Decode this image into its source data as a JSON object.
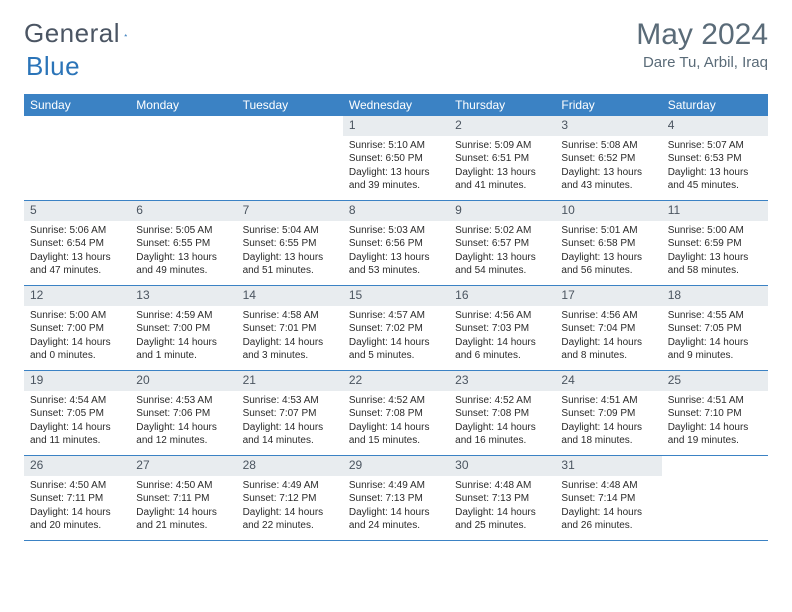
{
  "brand": {
    "part1": "General",
    "part2": "Blue"
  },
  "title": "May 2024",
  "location": "Dare Tu, Arbil, Iraq",
  "colors": {
    "header_bg": "#3b82c4",
    "header_text": "#ffffff",
    "daynum_bg": "#e8ecef",
    "daynum_text": "#4b5560",
    "rule": "#3b82c4",
    "title_text": "#5a6b78",
    "brand_gray": "#6b7280",
    "brand_blue": "#2b74b8"
  },
  "typography": {
    "title_fontsize": 30,
    "location_fontsize": 15,
    "dayhead_fontsize": 12,
    "daynum_fontsize": 12,
    "detail_fontsize": 10
  },
  "day_labels": [
    "Sunday",
    "Monday",
    "Tuesday",
    "Wednesday",
    "Thursday",
    "Friday",
    "Saturday"
  ],
  "weeks": [
    [
      {
        "n": "",
        "sr": "",
        "ss": "",
        "d1": "",
        "d2": ""
      },
      {
        "n": "",
        "sr": "",
        "ss": "",
        "d1": "",
        "d2": ""
      },
      {
        "n": "",
        "sr": "",
        "ss": "",
        "d1": "",
        "d2": ""
      },
      {
        "n": "1",
        "sr": "Sunrise: 5:10 AM",
        "ss": "Sunset: 6:50 PM",
        "d1": "Daylight: 13 hours",
        "d2": "and 39 minutes."
      },
      {
        "n": "2",
        "sr": "Sunrise: 5:09 AM",
        "ss": "Sunset: 6:51 PM",
        "d1": "Daylight: 13 hours",
        "d2": "and 41 minutes."
      },
      {
        "n": "3",
        "sr": "Sunrise: 5:08 AM",
        "ss": "Sunset: 6:52 PM",
        "d1": "Daylight: 13 hours",
        "d2": "and 43 minutes."
      },
      {
        "n": "4",
        "sr": "Sunrise: 5:07 AM",
        "ss": "Sunset: 6:53 PM",
        "d1": "Daylight: 13 hours",
        "d2": "and 45 minutes."
      }
    ],
    [
      {
        "n": "5",
        "sr": "Sunrise: 5:06 AM",
        "ss": "Sunset: 6:54 PM",
        "d1": "Daylight: 13 hours",
        "d2": "and 47 minutes."
      },
      {
        "n": "6",
        "sr": "Sunrise: 5:05 AM",
        "ss": "Sunset: 6:55 PM",
        "d1": "Daylight: 13 hours",
        "d2": "and 49 minutes."
      },
      {
        "n": "7",
        "sr": "Sunrise: 5:04 AM",
        "ss": "Sunset: 6:55 PM",
        "d1": "Daylight: 13 hours",
        "d2": "and 51 minutes."
      },
      {
        "n": "8",
        "sr": "Sunrise: 5:03 AM",
        "ss": "Sunset: 6:56 PM",
        "d1": "Daylight: 13 hours",
        "d2": "and 53 minutes."
      },
      {
        "n": "9",
        "sr": "Sunrise: 5:02 AM",
        "ss": "Sunset: 6:57 PM",
        "d1": "Daylight: 13 hours",
        "d2": "and 54 minutes."
      },
      {
        "n": "10",
        "sr": "Sunrise: 5:01 AM",
        "ss": "Sunset: 6:58 PM",
        "d1": "Daylight: 13 hours",
        "d2": "and 56 minutes."
      },
      {
        "n": "11",
        "sr": "Sunrise: 5:00 AM",
        "ss": "Sunset: 6:59 PM",
        "d1": "Daylight: 13 hours",
        "d2": "and 58 minutes."
      }
    ],
    [
      {
        "n": "12",
        "sr": "Sunrise: 5:00 AM",
        "ss": "Sunset: 7:00 PM",
        "d1": "Daylight: 14 hours",
        "d2": "and 0 minutes."
      },
      {
        "n": "13",
        "sr": "Sunrise: 4:59 AM",
        "ss": "Sunset: 7:00 PM",
        "d1": "Daylight: 14 hours",
        "d2": "and 1 minute."
      },
      {
        "n": "14",
        "sr": "Sunrise: 4:58 AM",
        "ss": "Sunset: 7:01 PM",
        "d1": "Daylight: 14 hours",
        "d2": "and 3 minutes."
      },
      {
        "n": "15",
        "sr": "Sunrise: 4:57 AM",
        "ss": "Sunset: 7:02 PM",
        "d1": "Daylight: 14 hours",
        "d2": "and 5 minutes."
      },
      {
        "n": "16",
        "sr": "Sunrise: 4:56 AM",
        "ss": "Sunset: 7:03 PM",
        "d1": "Daylight: 14 hours",
        "d2": "and 6 minutes."
      },
      {
        "n": "17",
        "sr": "Sunrise: 4:56 AM",
        "ss": "Sunset: 7:04 PM",
        "d1": "Daylight: 14 hours",
        "d2": "and 8 minutes."
      },
      {
        "n": "18",
        "sr": "Sunrise: 4:55 AM",
        "ss": "Sunset: 7:05 PM",
        "d1": "Daylight: 14 hours",
        "d2": "and 9 minutes."
      }
    ],
    [
      {
        "n": "19",
        "sr": "Sunrise: 4:54 AM",
        "ss": "Sunset: 7:05 PM",
        "d1": "Daylight: 14 hours",
        "d2": "and 11 minutes."
      },
      {
        "n": "20",
        "sr": "Sunrise: 4:53 AM",
        "ss": "Sunset: 7:06 PM",
        "d1": "Daylight: 14 hours",
        "d2": "and 12 minutes."
      },
      {
        "n": "21",
        "sr": "Sunrise: 4:53 AM",
        "ss": "Sunset: 7:07 PM",
        "d1": "Daylight: 14 hours",
        "d2": "and 14 minutes."
      },
      {
        "n": "22",
        "sr": "Sunrise: 4:52 AM",
        "ss": "Sunset: 7:08 PM",
        "d1": "Daylight: 14 hours",
        "d2": "and 15 minutes."
      },
      {
        "n": "23",
        "sr": "Sunrise: 4:52 AM",
        "ss": "Sunset: 7:08 PM",
        "d1": "Daylight: 14 hours",
        "d2": "and 16 minutes."
      },
      {
        "n": "24",
        "sr": "Sunrise: 4:51 AM",
        "ss": "Sunset: 7:09 PM",
        "d1": "Daylight: 14 hours",
        "d2": "and 18 minutes."
      },
      {
        "n": "25",
        "sr": "Sunrise: 4:51 AM",
        "ss": "Sunset: 7:10 PM",
        "d1": "Daylight: 14 hours",
        "d2": "and 19 minutes."
      }
    ],
    [
      {
        "n": "26",
        "sr": "Sunrise: 4:50 AM",
        "ss": "Sunset: 7:11 PM",
        "d1": "Daylight: 14 hours",
        "d2": "and 20 minutes."
      },
      {
        "n": "27",
        "sr": "Sunrise: 4:50 AM",
        "ss": "Sunset: 7:11 PM",
        "d1": "Daylight: 14 hours",
        "d2": "and 21 minutes."
      },
      {
        "n": "28",
        "sr": "Sunrise: 4:49 AM",
        "ss": "Sunset: 7:12 PM",
        "d1": "Daylight: 14 hours",
        "d2": "and 22 minutes."
      },
      {
        "n": "29",
        "sr": "Sunrise: 4:49 AM",
        "ss": "Sunset: 7:13 PM",
        "d1": "Daylight: 14 hours",
        "d2": "and 24 minutes."
      },
      {
        "n": "30",
        "sr": "Sunrise: 4:48 AM",
        "ss": "Sunset: 7:13 PM",
        "d1": "Daylight: 14 hours",
        "d2": "and 25 minutes."
      },
      {
        "n": "31",
        "sr": "Sunrise: 4:48 AM",
        "ss": "Sunset: 7:14 PM",
        "d1": "Daylight: 14 hours",
        "d2": "and 26 minutes."
      },
      {
        "n": "",
        "sr": "",
        "ss": "",
        "d1": "",
        "d2": ""
      }
    ]
  ]
}
